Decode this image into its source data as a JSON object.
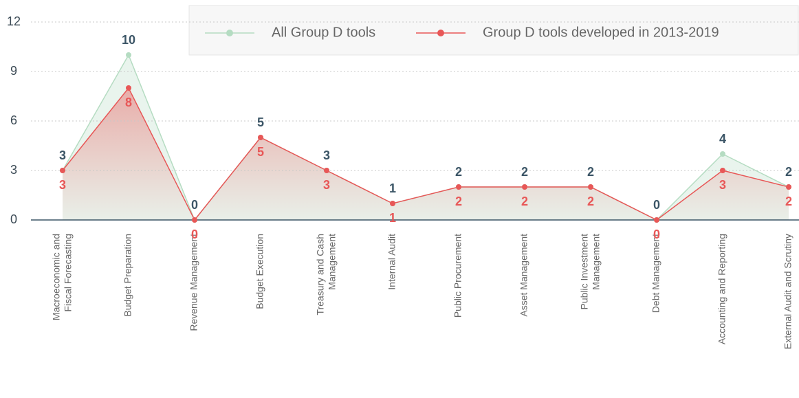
{
  "chart_data": {
    "type": "line",
    "categories": [
      "Macroeconomic and\nFiscal Forecasting",
      "Budget Preparation",
      "Revenue Management",
      "Budget Execution",
      "Treasury and Cash\nManagement",
      "Internal Audit",
      "Public Procurement",
      "Asset Management",
      "Public Investment\nManagement",
      "Debt Management",
      "Accounting and Reporting",
      "External Audit and Scrutiny"
    ],
    "series": [
      {
        "name": "All Group D tools",
        "color": "#b5dcc2",
        "values": [
          3,
          10,
          0,
          5,
          3,
          1,
          2,
          2,
          2,
          0,
          4,
          2
        ]
      },
      {
        "name": "Group D tools developed in 2013-2019",
        "color": "#e85757",
        "values": [
          3,
          8,
          0,
          5,
          3,
          1,
          2,
          2,
          2,
          0,
          3,
          2
        ]
      }
    ],
    "ylim": [
      0,
      12
    ],
    "yticks": [
      0,
      3,
      6,
      9,
      12
    ],
    "grid": true,
    "legend": "top"
  }
}
